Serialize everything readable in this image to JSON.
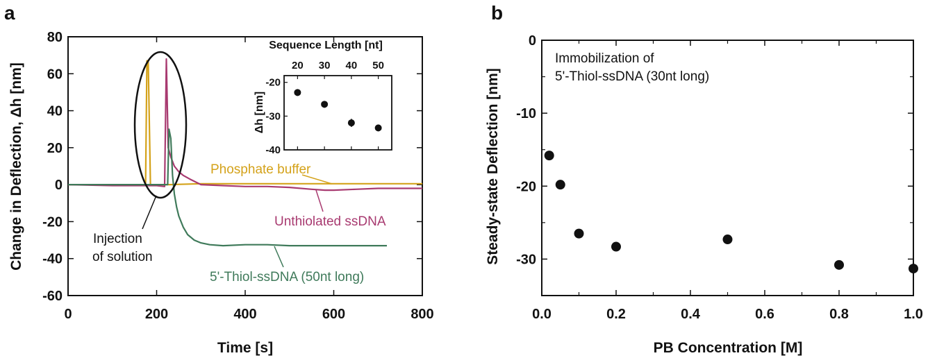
{
  "colors": {
    "phosphate": "#d4a21a",
    "unthiolated": "#a83a70",
    "thiol": "#3f7a5a",
    "axis": "#111111",
    "marker": "#111111"
  },
  "chart_data": [
    {
      "panel": "a",
      "type": "line",
      "xlabel": "Time [s]",
      "ylabel": "Change in Deflection,  Δh [nm]",
      "xlim": [
        0,
        800
      ],
      "ylim": [
        -60,
        80
      ],
      "xticks": [
        "0",
        "200",
        "400",
        "600",
        "800"
      ],
      "yticks": [
        "-60",
        "-40",
        "-20",
        "0",
        "20",
        "40",
        "60",
        "80"
      ],
      "xtick_values": [
        0,
        200,
        400,
        600,
        800
      ],
      "ytick_values": [
        -60,
        -40,
        -20,
        0,
        20,
        40,
        60,
        80
      ],
      "series": [
        {
          "name": "Phosphate buffer",
          "color_key": "phosphate",
          "x": [
            0,
            100,
            170,
            175,
            178,
            181,
            186,
            230,
            300,
            400,
            500,
            600,
            700,
            800
          ],
          "y": [
            0,
            0,
            0,
            0,
            67,
            67,
            0,
            0,
            0.5,
            0.5,
            0.5,
            0.5,
            0.5,
            0.5
          ]
        },
        {
          "name": "Unthiolated ssDNA",
          "color_key": "unthiolated",
          "x": [
            0,
            100,
            200,
            218,
            222,
            226,
            232,
            240,
            250,
            260,
            275,
            300,
            350,
            400,
            450,
            500,
            550,
            580,
            600,
            650,
            700,
            800
          ],
          "y": [
            0,
            -0.5,
            -0.5,
            -1,
            68,
            20,
            15,
            10,
            7,
            5,
            3,
            0,
            -0.5,
            -1,
            -1,
            -1.5,
            -2.5,
            -3,
            -3,
            -2.5,
            -2,
            -2
          ]
        },
        {
          "name": "5'-Thiol-ssDNA (50nt long)",
          "color_key": "thiol",
          "x": [
            0,
            100,
            200,
            225,
            228,
            232,
            236,
            240,
            245,
            250,
            260,
            270,
            285,
            300,
            320,
            350,
            400,
            450,
            500,
            550,
            600,
            650,
            700,
            720
          ],
          "y": [
            0,
            0,
            0,
            0,
            30,
            25,
            5,
            -5,
            -12,
            -17,
            -23,
            -27,
            -30,
            -31.5,
            -32.5,
            -33,
            -32.5,
            -32.5,
            -33,
            -33,
            -33,
            -33,
            -33,
            -33
          ]
        }
      ],
      "annotations": [
        "Phosphate buffer",
        "Unthiolated ssDNA",
        "5'-Thiol-ssDNA (50nt long)",
        "Injection",
        "of solution"
      ],
      "inset": {
        "type": "scatter",
        "title": "Sequence Length [nt]",
        "ylabel": "Δh [nm]",
        "xticks": [
          "20",
          "30",
          "40",
          "50"
        ],
        "xtick_values": [
          20,
          30,
          40,
          50
        ],
        "yticks": [
          "-20",
          "-30",
          "-40"
        ],
        "ytick_values": [
          -20,
          -30,
          -40
        ],
        "xlim": [
          15,
          55
        ],
        "ylim": [
          -40,
          -18
        ],
        "x": [
          20,
          30,
          40,
          50
        ],
        "y": [
          -23,
          -26.5,
          -32,
          -33.5
        ],
        "yerr": [
          1,
          1,
          1.2,
          1
        ]
      }
    },
    {
      "panel": "b",
      "type": "scatter",
      "title": "Immobilization of\n5'-Thiol-ssDNA (30nt long)",
      "xlabel": "PB Concentration [M]",
      "ylabel": "Steady-state Deflection [nm]",
      "xlim": [
        0,
        1.0
      ],
      "ylim": [
        -35,
        0
      ],
      "xticks": [
        "0.0",
        "0.2",
        "0.4",
        "0.6",
        "0.8",
        "1.0"
      ],
      "xtick_values": [
        0,
        0.2,
        0.4,
        0.6,
        0.8,
        1.0
      ],
      "yticks": [
        "0",
        "-10",
        "-20",
        "-30"
      ],
      "ytick_values": [
        0,
        -10,
        -20,
        -30
      ],
      "x": [
        0.02,
        0.05,
        0.1,
        0.2,
        0.5,
        0.8,
        1.0
      ],
      "y": [
        -15.8,
        -19.8,
        -26.5,
        -28.3,
        -27.3,
        -30.8,
        -31.3
      ]
    }
  ],
  "labels": {
    "panel_a": "a",
    "panel_b": "b",
    "phosphate": "Phosphate buffer",
    "unthiolated": "Unthiolated ssDNA",
    "thiol": "5'-Thiol-ssDNA (50nt long)",
    "injection_line1": "Injection",
    "injection_line2": "of solution",
    "b_title_line1": "Immobilization of",
    "b_title_line2": "5'-Thiol-ssDNA (30nt long)"
  }
}
